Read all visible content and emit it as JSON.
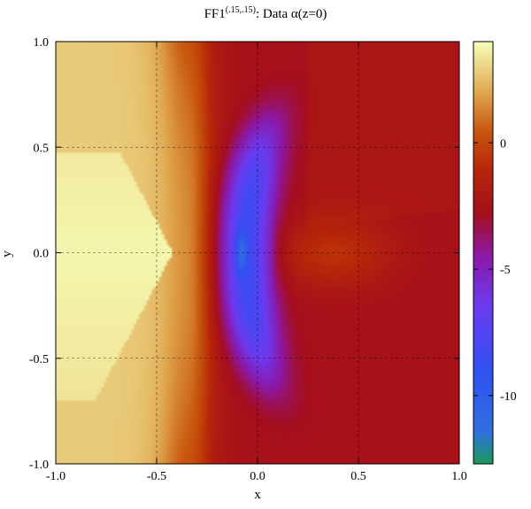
{
  "chart_data": {
    "type": "heatmap",
    "title": {
      "prefix": "FF1",
      "superscript": "(.15,.15)",
      "suffix": ": Data α(z=0)"
    },
    "xlabel": "x",
    "ylabel": "y",
    "xlim": [
      -1.0,
      1.0
    ],
    "ylim": [
      -1.0,
      1.0
    ],
    "x_ticks": [
      {
        "value": -1.0,
        "label": "-1.0"
      },
      {
        "value": -0.5,
        "label": "-0.5"
      },
      {
        "value": 0.0,
        "label": "0.0"
      },
      {
        "value": 0.5,
        "label": "0.5"
      },
      {
        "value": 1.0,
        "label": "1.0"
      }
    ],
    "y_ticks": [
      {
        "value": -1.0,
        "label": "-1.0"
      },
      {
        "value": -0.5,
        "label": "-0.5"
      },
      {
        "value": 0.0,
        "label": "0.0"
      },
      {
        "value": 0.5,
        "label": "0.5"
      },
      {
        "value": 1.0,
        "label": "1.0"
      }
    ],
    "grid": true,
    "colorbar": {
      "min": -12.7,
      "max": 4.0,
      "ticks": [
        {
          "value": 0,
          "label": "0"
        },
        {
          "value": -5,
          "label": "-5"
        },
        {
          "value": -10,
          "label": "-10"
        }
      ],
      "stops": [
        {
          "value": -12.7,
          "color": "#1a9a5a"
        },
        {
          "value": -11.4,
          "color": "#2f6fe0"
        },
        {
          "value": -9.0,
          "color": "#3050f2"
        },
        {
          "value": -6.5,
          "color": "#6a3cf0"
        },
        {
          "value": -4.5,
          "color": "#8c18a8"
        },
        {
          "value": -2.8,
          "color": "#a50e1c"
        },
        {
          "value": -1.0,
          "color": "#b82808"
        },
        {
          "value": 0.5,
          "color": "#c8580e"
        },
        {
          "value": 2.0,
          "color": "#e0a850"
        },
        {
          "value": 4.0,
          "color": "#f6ffb8"
        }
      ]
    },
    "field_description": {
      "background_value": -2.6,
      "left_plateau_value": 2.8,
      "inner_core_value": 3.8,
      "central_minimum_value": -11.8,
      "arc_value": -8.5
    }
  }
}
